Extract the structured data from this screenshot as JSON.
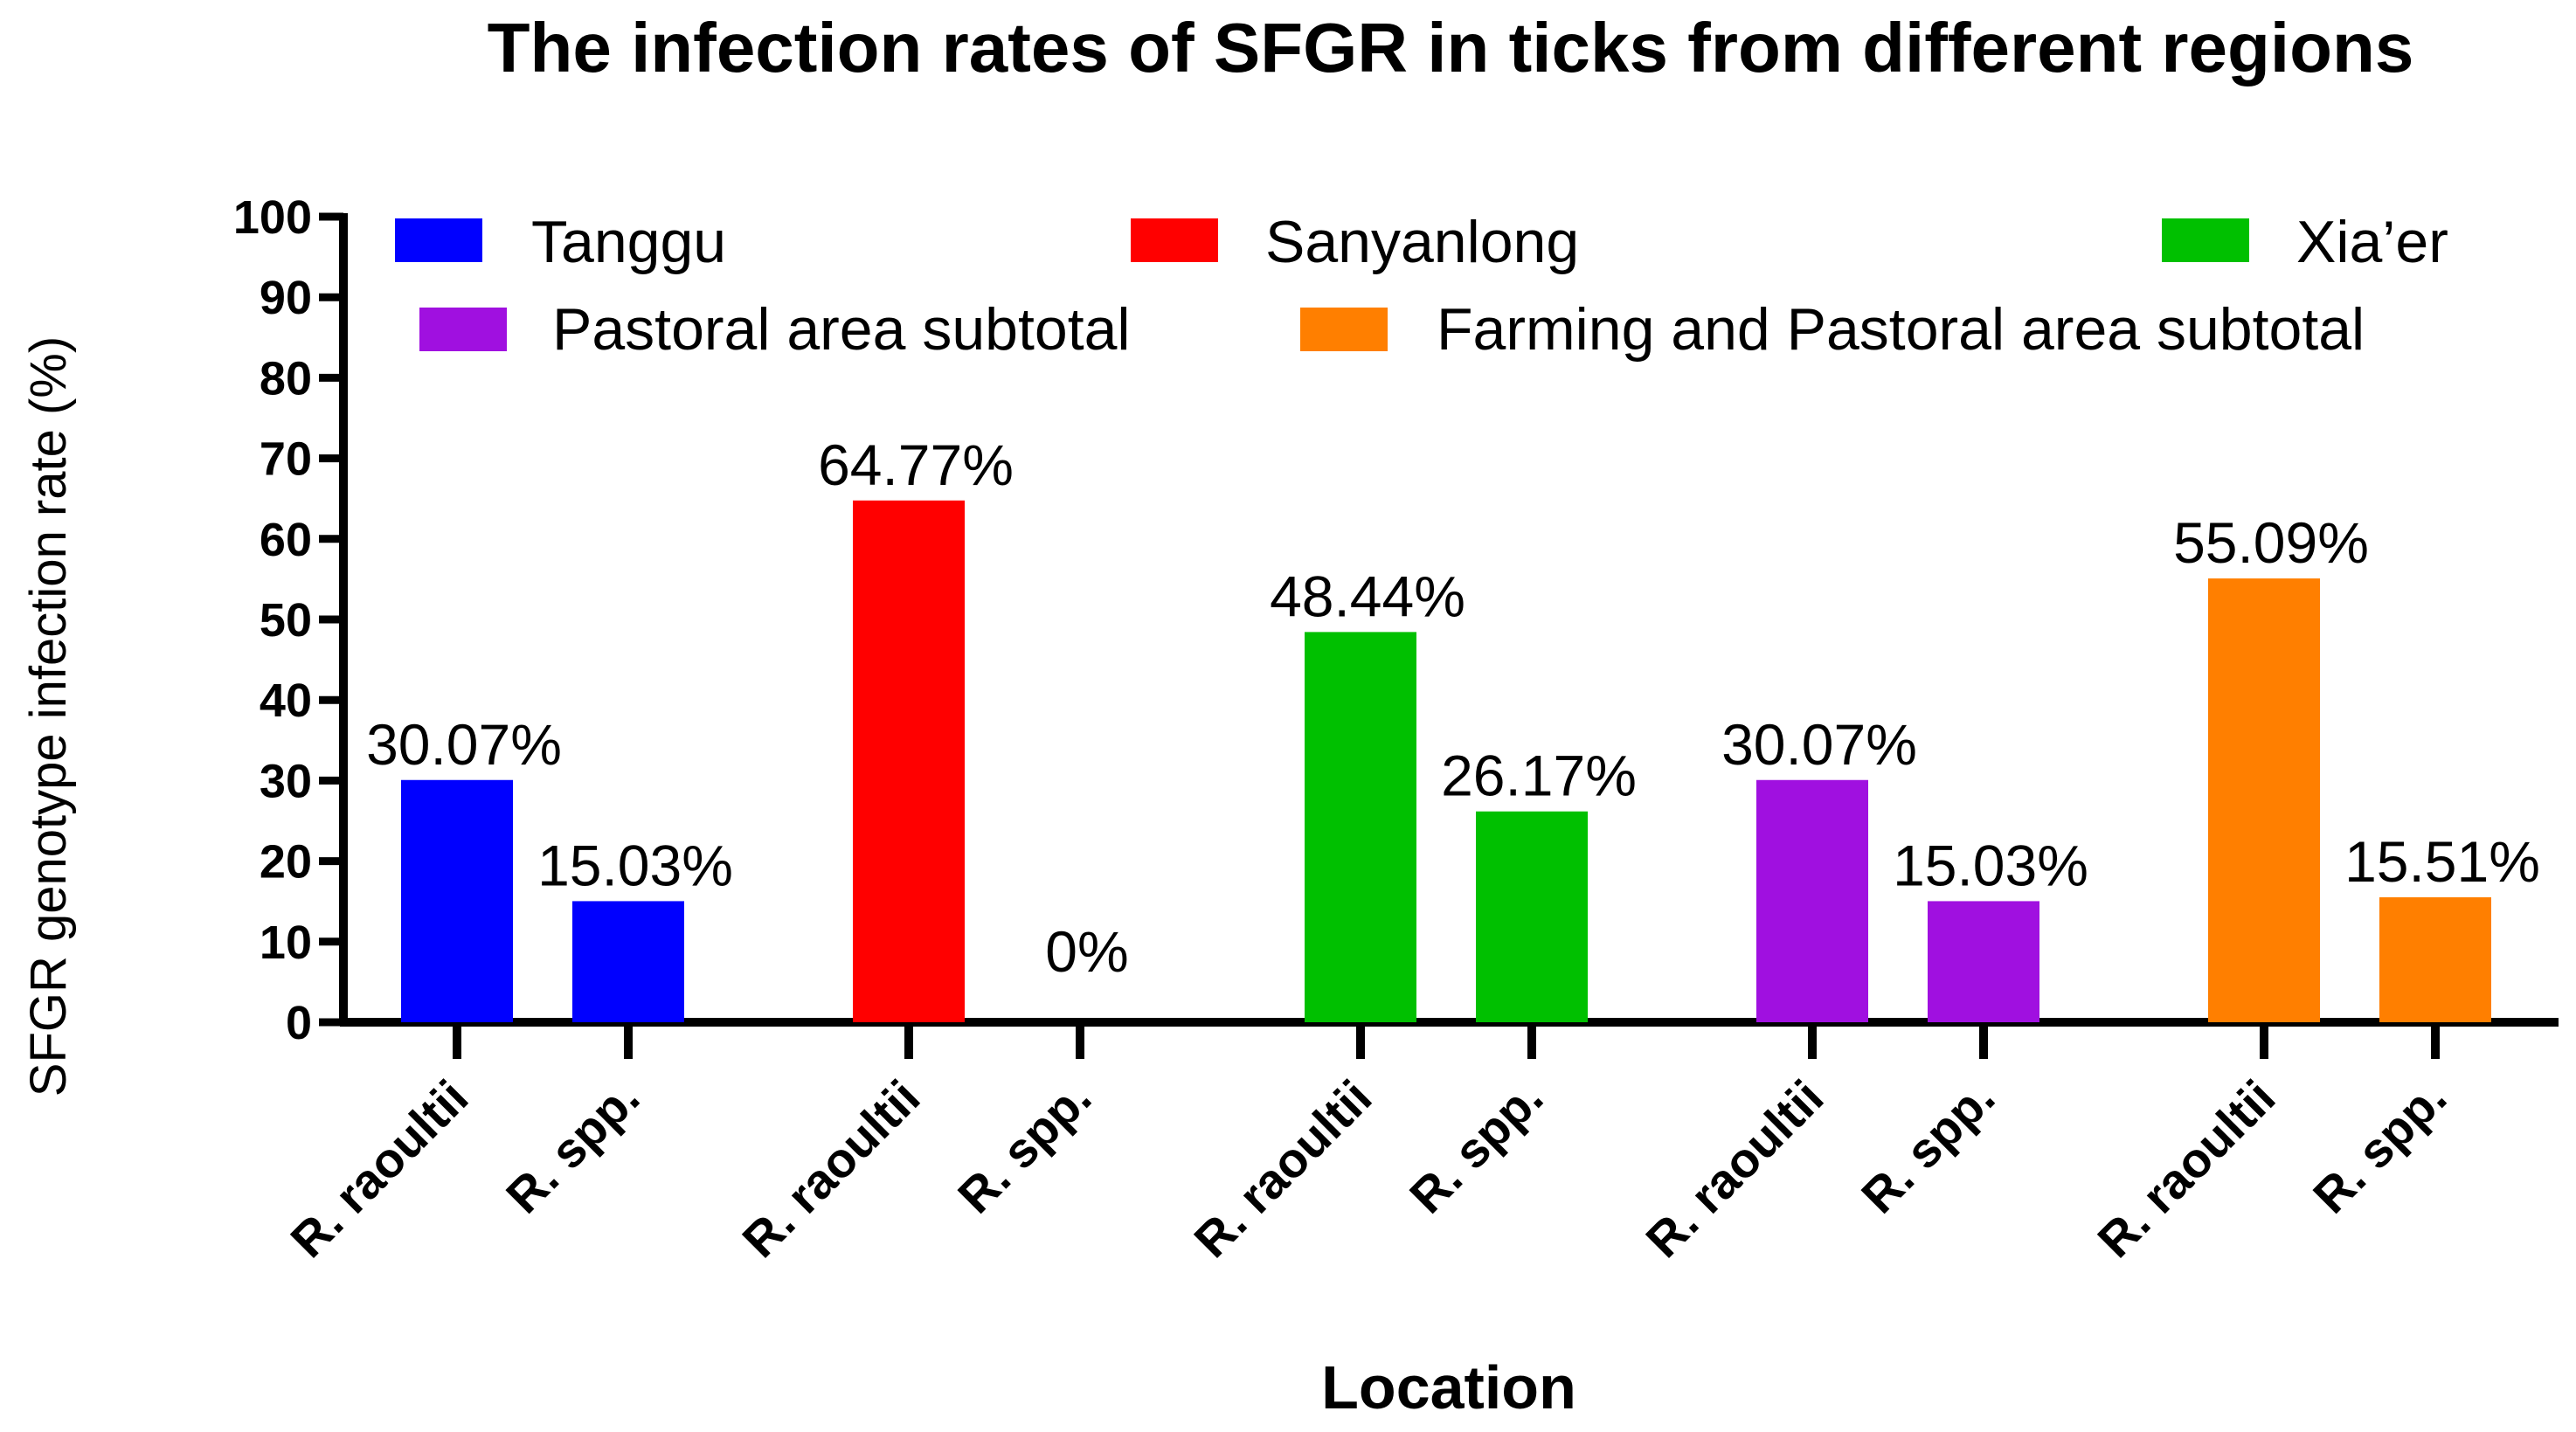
{
  "chart_data": {
    "type": "bar",
    "title": "The infection rates of SFGR in ticks from different regions",
    "xlabel": "Location",
    "ylabel": "SFGR genotype infection rate (%)",
    "ylim": [
      0,
      100
    ],
    "yticks": [
      0,
      10,
      20,
      30,
      40,
      50,
      60,
      70,
      80,
      90,
      100
    ],
    "grid": false,
    "legend_position": "top",
    "groups": [
      {
        "name": "Tanggu",
        "color": "#0000FF",
        "bars": [
          {
            "category": "R. raoultii",
            "value": 30.07,
            "label": "30.07%"
          },
          {
            "category": "R. spp.",
            "value": 15.03,
            "label": "15.03%"
          }
        ]
      },
      {
        "name": "Sanyanlong",
        "color": "#FF0000",
        "bars": [
          {
            "category": "R. raoultii",
            "value": 64.77,
            "label": "64.77%"
          },
          {
            "category": "R. spp.",
            "value": 0,
            "label": "0%"
          }
        ]
      },
      {
        "name": "Xia’er",
        "color": "#00C000",
        "bars": [
          {
            "category": "R. raoultii",
            "value": 48.44,
            "label": "48.44%"
          },
          {
            "category": "R. spp.",
            "value": 26.17,
            "label": "26.17%"
          }
        ]
      },
      {
        "name": "Pastoral area subtotal",
        "color": "#A010E0",
        "bars": [
          {
            "category": "R. raoultii",
            "value": 30.07,
            "label": "30.07%"
          },
          {
            "category": "R. spp.",
            "value": 15.03,
            "label": "15.03%"
          }
        ]
      },
      {
        "name": "Farming and Pastoral area subtotal",
        "color": "#FF7F00",
        "bars": [
          {
            "category": "R. raoultii",
            "value": 55.09,
            "label": "55.09%"
          },
          {
            "category": "R. spp.",
            "value": 15.51,
            "label": "15.51%"
          }
        ]
      }
    ]
  }
}
